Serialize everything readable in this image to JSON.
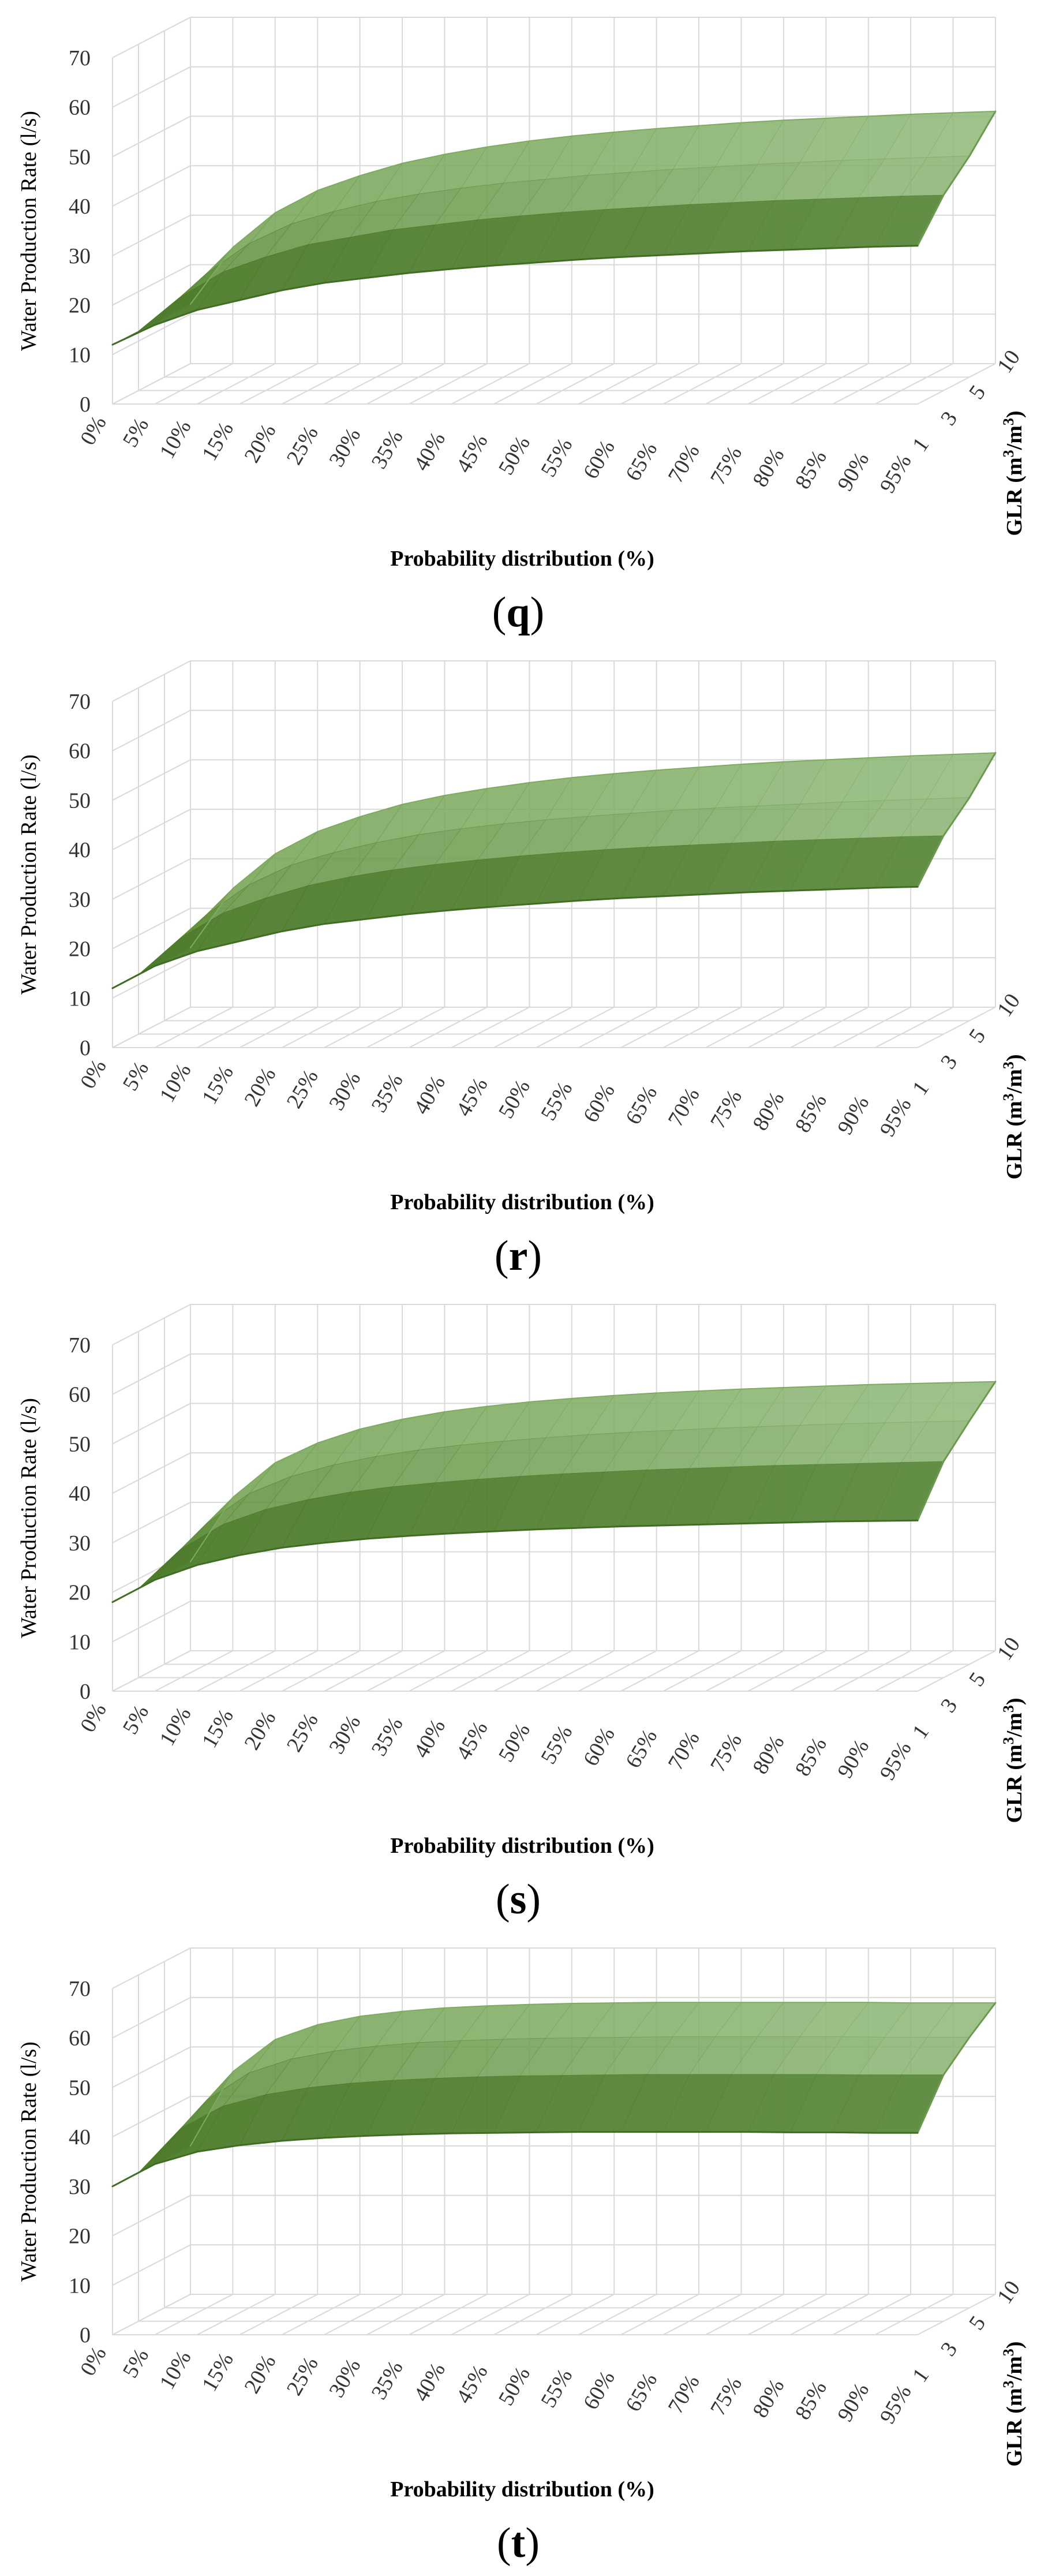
{
  "chart_data": [
    {
      "type": "surface",
      "panel": "q",
      "ylabel": "Water Production Rate (l/s)",
      "xlabel": "Probability distribution (%)",
      "zlabel_base": "GLR (m",
      "zlabel_sup": "3",
      "zlabel_mid": "/m",
      "zlabel_sup2": "3",
      "zlabel_end": ")",
      "ylim": [
        0,
        70
      ],
      "yticks": [
        "0",
        "10",
        "20",
        "30",
        "40",
        "50",
        "60",
        "70"
      ],
      "x_categories": [
        "0%",
        "5%",
        "10%",
        "15%",
        "20%",
        "25%",
        "30%",
        "35%",
        "40%",
        "45%",
        "50%",
        "55%",
        "60%",
        "65%",
        "70%",
        "75%",
        "80%",
        "85%",
        "90%",
        "95%"
      ],
      "depth_categories": [
        "1",
        "3",
        "5",
        "10"
      ],
      "series": [
        {
          "name": "GLR 1",
          "values": [
            12,
            16,
            19,
            21,
            23,
            24.5,
            25.5,
            26.5,
            27.3,
            28,
            28.6,
            29.2,
            29.7,
            30.1,
            30.5,
            30.9,
            31.2,
            31.5,
            31.8,
            32
          ]
        },
        {
          "name": "GLR 3",
          "values": [
            12,
            19,
            24,
            27,
            29.5,
            31,
            32.5,
            33.5,
            34.5,
            35.3,
            36,
            36.6,
            37.1,
            37.6,
            38,
            38.4,
            38.7,
            39,
            39.3,
            39.5
          ]
        },
        {
          "name": "GLR 5",
          "values": [
            12,
            21,
            27,
            31,
            33.5,
            35.5,
            37,
            38.2,
            39.2,
            40,
            40.8,
            41.4,
            42,
            42.5,
            43,
            43.4,
            43.8,
            44.1,
            44.4,
            44.7
          ]
        },
        {
          "name": "GLR 10",
          "values": [
            12,
            23.5,
            30.5,
            35,
            38,
            40.5,
            42.3,
            43.8,
            45,
            46,
            46.8,
            47.5,
            48.1,
            48.7,
            49.2,
            49.6,
            50,
            50.4,
            50.7,
            51
          ]
        }
      ]
    },
    {
      "type": "surface",
      "panel": "r",
      "ylabel": "Water Production Rate (l/s)",
      "xlabel": "Probability distribution (%)",
      "zlabel_base": "GLR (m",
      "zlabel_sup": "3",
      "zlabel_mid": "/m",
      "zlabel_sup2": "3",
      "zlabel_end": ")",
      "ylim": [
        0,
        70
      ],
      "yticks": [
        "0",
        "10",
        "20",
        "30",
        "40",
        "50",
        "60",
        "70"
      ],
      "x_categories": [
        "0%",
        "5%",
        "10%",
        "15%",
        "20%",
        "25%",
        "30%",
        "35%",
        "40%",
        "45%",
        "50%",
        "55%",
        "60%",
        "65%",
        "70%",
        "75%",
        "80%",
        "85%",
        "90%",
        "95%"
      ],
      "depth_categories": [
        "1",
        "3",
        "5",
        "10"
      ],
      "series": [
        {
          "name": "GLR 1",
          "values": [
            12,
            16.5,
            19.5,
            21.5,
            23.5,
            25,
            26,
            27,
            27.8,
            28.5,
            29.1,
            29.7,
            30.2,
            30.6,
            31,
            31.4,
            31.7,
            32,
            32.3,
            32.5
          ]
        },
        {
          "name": "GLR 3",
          "values": [
            12,
            19.5,
            24.5,
            27.5,
            30,
            31.8,
            33.2,
            34.3,
            35.2,
            36,
            36.7,
            37.3,
            37.8,
            38.2,
            38.6,
            39,
            39.3,
            39.6,
            39.9,
            40.1
          ]
        },
        {
          "name": "GLR 5",
          "values": [
            12,
            21.5,
            27.5,
            31.5,
            34,
            36,
            37.6,
            38.8,
            39.8,
            40.6,
            41.3,
            41.9,
            42.5,
            43,
            43.4,
            43.8,
            44.2,
            44.5,
            44.8,
            45.1
          ]
        },
        {
          "name": "GLR 10",
          "values": [
            12,
            24,
            31,
            35.5,
            38.5,
            41,
            42.8,
            44.2,
            45.4,
            46.4,
            47.2,
            47.9,
            48.5,
            49.1,
            49.6,
            50,
            50.4,
            50.8,
            51.1,
            51.4
          ]
        }
      ]
    },
    {
      "type": "surface",
      "panel": "s",
      "ylabel": "Water Production Rate (l/s)",
      "xlabel": "Probability distribution (%)",
      "zlabel_base": "GLR (m",
      "zlabel_sup": "3",
      "zlabel_mid": "/m",
      "zlabel_sup2": "3",
      "zlabel_end": ")",
      "ylim": [
        0,
        70
      ],
      "yticks": [
        "0",
        "10",
        "20",
        "30",
        "40",
        "50",
        "60",
        "70"
      ],
      "x_categories": [
        "0%",
        "5%",
        "10%",
        "15%",
        "20%",
        "25%",
        "30%",
        "35%",
        "40%",
        "45%",
        "50%",
        "55%",
        "60%",
        "65%",
        "70%",
        "75%",
        "80%",
        "85%",
        "90%",
        "95%"
      ],
      "depth_categories": [
        "1",
        "3",
        "5",
        "10"
      ],
      "series": [
        {
          "name": "GLR 1",
          "values": [
            18,
            22.5,
            25.5,
            27.5,
            29,
            30,
            30.8,
            31.4,
            31.9,
            32.3,
            32.7,
            33,
            33.3,
            33.5,
            33.7,
            33.9,
            34.1,
            34.3,
            34.4,
            34.5
          ]
        },
        {
          "name": "GLR 3",
          "values": [
            18,
            26,
            31,
            34,
            36,
            37.5,
            38.6,
            39.4,
            40.1,
            40.7,
            41.2,
            41.6,
            42,
            42.3,
            42.6,
            42.9,
            43.1,
            43.3,
            43.5,
            43.7
          ]
        },
        {
          "name": "GLR 5",
          "values": [
            18,
            28.5,
            34.5,
            38,
            40.3,
            42,
            43.3,
            44.3,
            45.1,
            45.8,
            46.4,
            46.9,
            47.3,
            47.7,
            48,
            48.3,
            48.6,
            48.8,
            49,
            49.2
          ]
        },
        {
          "name": "GLR 10",
          "values": [
            18,
            31,
            38,
            42,
            44.8,
            46.8,
            48.3,
            49.4,
            50.3,
            51,
            51.6,
            52.1,
            52.5,
            52.9,
            53.2,
            53.5,
            53.8,
            54,
            54.2,
            54.4
          ]
        }
      ]
    },
    {
      "type": "surface",
      "panel": "t",
      "ylabel": "Water Production Rate (l/s)",
      "xlabel": "Probability distribution (%)",
      "zlabel_base": "GLR (m",
      "zlabel_sup": "3",
      "zlabel_mid": "/m",
      "zlabel_sup2": "3",
      "zlabel_end": ")",
      "ylim": [
        0,
        70
      ],
      "yticks": [
        "0",
        "10",
        "20",
        "30",
        "40",
        "50",
        "60",
        "70"
      ],
      "x_categories": [
        "0%",
        "5%",
        "10%",
        "15%",
        "20%",
        "25%",
        "30%",
        "35%",
        "40%",
        "45%",
        "50%",
        "55%",
        "60%",
        "65%",
        "70%",
        "75%",
        "80%",
        "85%",
        "90%",
        "95%"
      ],
      "depth_categories": [
        "1",
        "3",
        "5",
        "10"
      ],
      "series": [
        {
          "name": "GLR 1",
          "values": [
            30,
            34.5,
            37,
            38.3,
            39.2,
            39.8,
            40.2,
            40.5,
            40.7,
            40.8,
            40.9,
            41,
            41,
            41,
            41,
            41,
            40.9,
            40.9,
            40.8,
            40.8
          ]
        },
        {
          "name": "GLR 3",
          "values": [
            30,
            39,
            43.5,
            45.8,
            47.2,
            48.1,
            48.7,
            49.1,
            49.4,
            49.6,
            49.7,
            49.8,
            49.9,
            49.9,
            49.9,
            49.9,
            49.9,
            49.8,
            49.8,
            49.8
          ]
        },
        {
          "name": "GLR 5",
          "values": [
            30,
            42,
            47.5,
            50.3,
            51.9,
            52.9,
            53.6,
            54,
            54.3,
            54.5,
            54.6,
            54.7,
            54.8,
            54.8,
            54.8,
            54.8,
            54.8,
            54.7,
            54.7,
            54.7
          ]
        },
        {
          "name": "GLR 10",
          "values": [
            30,
            45,
            51.5,
            54.5,
            56.2,
            57.2,
            57.9,
            58.3,
            58.6,
            58.8,
            58.9,
            59,
            59,
            59,
            59,
            59,
            59,
            58.9,
            58.9,
            58.9
          ]
        }
      ]
    }
  ],
  "colors": {
    "surface_dark": "#4a7a2a",
    "surface_mid": "#5f9a3a",
    "surface_light": "#8fb87a",
    "grid": "#d9d9d9",
    "text": "#333333"
  }
}
